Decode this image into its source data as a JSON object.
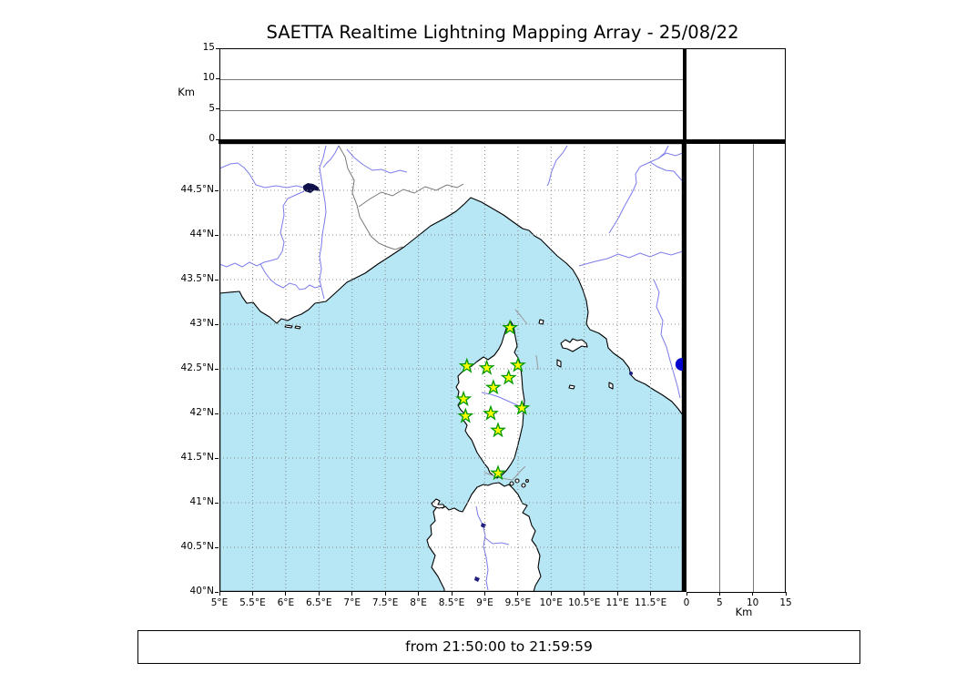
{
  "title": "SAETTA Realtime Lightning Mapping Array - 25/08/22",
  "footer": {
    "time_range_label": "from 21:50:00 to 21:59:59"
  },
  "altitude_axis": {
    "unit_label": "Km"
  },
  "chart_data": {
    "type": "map",
    "title": "SAETTA Realtime Lightning Mapping Array - 25/08/22",
    "date": "25/08/22",
    "time_window": {
      "from": "21:50:00",
      "to": "21:59:59"
    },
    "region": "Corsica / NW Mediterranean (S. France, Liguria-Tuscany coast, Sardinia)",
    "lon_axis": {
      "min": 5,
      "max": 12,
      "grid_step_deg": 0.5,
      "ticks": [
        {
          "v": 5,
          "label": "5°E"
        },
        {
          "v": 5.5,
          "label": "5.5°E"
        },
        {
          "v": 6,
          "label": "6°E"
        },
        {
          "v": 6.5,
          "label": "6.5°E"
        },
        {
          "v": 7,
          "label": "7°E"
        },
        {
          "v": 7.5,
          "label": "7.5°E"
        },
        {
          "v": 8,
          "label": "8°E"
        },
        {
          "v": 8.5,
          "label": "8.5°E"
        },
        {
          "v": 9,
          "label": "9°E"
        },
        {
          "v": 9.5,
          "label": "9.5°E"
        },
        {
          "v": 10,
          "label": "10°E"
        },
        {
          "v": 10.5,
          "label": "10.5°E"
        },
        {
          "v": 11,
          "label": "11°E"
        },
        {
          "v": 11.5,
          "label": "11.5°E"
        }
      ]
    },
    "lat_axis": {
      "min": 40,
      "max": 45,
      "grid_step_deg": 0.5,
      "ticks": [
        {
          "v": 40,
          "label": "40°N"
        },
        {
          "v": 40.5,
          "label": "40.5°N"
        },
        {
          "v": 41,
          "label": "41°N"
        },
        {
          "v": 41.5,
          "label": "41.5°N"
        },
        {
          "v": 42,
          "label": "42°N"
        },
        {
          "v": 42.5,
          "label": "42.5°N"
        },
        {
          "v": 43,
          "label": "43°N"
        },
        {
          "v": 43.5,
          "label": "43.5°N"
        },
        {
          "v": 44,
          "label": "44°N"
        },
        {
          "v": 44.5,
          "label": "44.5°N"
        }
      ]
    },
    "altitude_panels": {
      "unit": "Km",
      "min": 0,
      "max": 15,
      "ticks": [
        {
          "v": 0,
          "label": "0"
        },
        {
          "v": 5,
          "label": "5"
        },
        {
          "v": 10,
          "label": "10"
        },
        {
          "v": 15,
          "label": "15"
        }
      ],
      "gridlines_km": [
        5,
        10
      ],
      "plotted_points": []
    },
    "stations_stars_lon_lat": [
      [
        9.38,
        42.96
      ],
      [
        8.73,
        42.53
      ],
      [
        9.03,
        42.51
      ],
      [
        9.5,
        42.54
      ],
      [
        9.36,
        42.4
      ],
      [
        9.13,
        42.29
      ],
      [
        8.68,
        42.16
      ],
      [
        9.56,
        42.06
      ],
      [
        8.71,
        41.97
      ],
      [
        9.09,
        42.0
      ],
      [
        9.2,
        41.81
      ],
      [
        9.2,
        41.33
      ]
    ],
    "event_marker": {
      "lon": 11.97,
      "lat": 42.55,
      "shape": "circle",
      "color": "#0000cc"
    },
    "colors": {
      "sea": "#b7e6f4",
      "land": "#ffffff",
      "coastline": "#000000",
      "rivers": "#7b7bec",
      "admin_borders": "#777777",
      "sea_lines": "#999999",
      "grid": "#888888",
      "station_fill": "#ffff00",
      "station_stroke": "#009900",
      "lake": "#10104a",
      "reservoir": "#202080"
    }
  }
}
